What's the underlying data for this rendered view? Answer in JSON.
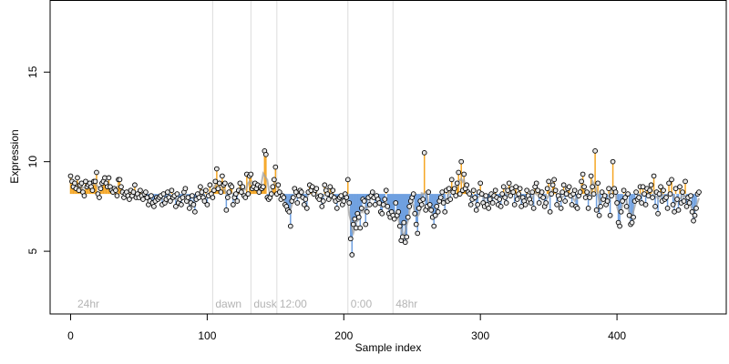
{
  "chart_data": {
    "type": "scatter",
    "xlabel": "Sample index",
    "ylabel": "Expression",
    "xlim": [
      -15,
      480
    ],
    "ylim": [
      1.5,
      19
    ],
    "xticks": [
      0,
      100,
      200,
      300,
      400
    ],
    "yticks": [
      5,
      10,
      15
    ],
    "baseline": 8.2,
    "annotations": [
      {
        "x": 104,
        "label": "dawn"
      },
      {
        "x": 132,
        "label": "dusk"
      },
      {
        "x": 151,
        "label": "12:00"
      },
      {
        "x": 203,
        "label": "0:00"
      },
      {
        "x": 236,
        "label": "48hr"
      }
    ],
    "corner_label": "24hr",
    "colors": {
      "above": "#f5a623",
      "below": "#6fa0e0",
      "trend": "#a0a0a0",
      "guide": "#dcdcdc",
      "point_fill": "#e8e8e8"
    },
    "series": [
      {
        "y": [
          9.2,
          8.9,
          8.6,
          8.8,
          8.5,
          9.1,
          8.4,
          8.7,
          8.8,
          8.3,
          8.1,
          8.9,
          8.6,
          8.7,
          8.8,
          8.6,
          8.4,
          8.9,
          8.9,
          9.4,
          8.2,
          8.0,
          8.5,
          8.8,
          8.9,
          9.1,
          8.8,
          8.6,
          9.1,
          8.6,
          8.4,
          8.3,
          8.5,
          8.4,
          8.1,
          9.0,
          9.0,
          8.6,
          8.3,
          8.0,
          8.2,
          8.3,
          8.1,
          7.9,
          8.4,
          8.1,
          8.3,
          8.7,
          8.0,
          8.2,
          8.0,
          8.4,
          8.1,
          7.9,
          8.2,
          8.3,
          8.0,
          7.6,
          7.8,
          8.1,
          7.7,
          7.5,
          7.8,
          8.0,
          7.9,
          8.0,
          8.1,
          7.6,
          8.2,
          7.7,
          7.9,
          8.3,
          8.0,
          7.8,
          8.4,
          8.0,
          8.1,
          7.5,
          8.2,
          7.7,
          7.9,
          7.6,
          8.0,
          8.3,
          8.5,
          7.8,
          8.0,
          7.4,
          7.7,
          8.1,
          7.6,
          7.2,
          7.9,
          8.2,
          8.0,
          8.6,
          8.3,
          8.0,
          7.8,
          8.4,
          7.6,
          8.1,
          8.7,
          8.2,
          8.0,
          8.4,
          8.9,
          9.6,
          8.5,
          8.8,
          8.3,
          9.2,
          8.7,
          8.8,
          7.3,
          8.0,
          8.3,
          8.7,
          8.6,
          7.6,
          8.0,
          8.2,
          7.8,
          8.4,
          8.8,
          8.3,
          8.6,
          8.1,
          8.0,
          9.3,
          8.2,
          9.2,
          9.3,
          8.5,
          8.6,
          8.8,
          8.5,
          8.7,
          8.3,
          8.6,
          8.5,
          8.6,
          10.6,
          10.4,
          8.0,
          7.9,
          8.0,
          8.2,
          8.6,
          9.0,
          9.7,
          8.2,
          8.7,
          8.3,
          7.9,
          8.1,
          8.0,
          7.6,
          7.5,
          7.3,
          7.2,
          6.4,
          7.8,
          8.0,
          8.5,
          8.3,
          7.7,
          8.1,
          8.4,
          8.3,
          8.0,
          7.6,
          7.9,
          7.4,
          8.3,
          8.7,
          8.4,
          8.6,
          8.2,
          8.4,
          8.5,
          8.0,
          7.9,
          8.1,
          7.5,
          7.8,
          8.7,
          8.4,
          8.2,
          7.9,
          8.6,
          8.1,
          8.4,
          8.0,
          7.8,
          7.4,
          7.9,
          8.0,
          8.1,
          7.6,
          7.8,
          8.2,
          8.0,
          9.0,
          7.7,
          5.7,
          4.8,
          6.5,
          6.8,
          6.3,
          7.1,
          6.9,
          6.3,
          7.4,
          7.9,
          7.8,
          6.5,
          7.2,
          8.0,
          7.6,
          8.1,
          8.3,
          8.0,
          7.6,
          8.1,
          7.9,
          7.7,
          7.2,
          7.1,
          7.6,
          7.9,
          8.4,
          7.5,
          7.1,
          6.9,
          7.2,
          7.0,
          6.8,
          7.7,
          7.0,
          7.2,
          6.4,
          5.6,
          5.8,
          6.6,
          5.5,
          5.8,
          6.9,
          7.5,
          7.8,
          8.0,
          8.2,
          7.1,
          6.5,
          6.0,
          7.4,
          7.8,
          7.6,
          7.9,
          10.5,
          7.3,
          7.5,
          8.3,
          7.6,
          7.3,
          6.9,
          6.4,
          7.0,
          7.5,
          7.2,
          7.8,
          8.0,
          8.3,
          7.7,
          7.2,
          8.4,
          7.8,
          8.5,
          7.9,
          9.0,
          8.3,
          8.5,
          8.1,
          8.8,
          9.4,
          8.2,
          10.0,
          8.4,
          9.3,
          8.5,
          8.7,
          8.3,
          8.2,
          7.6,
          7.9,
          8.4,
          8.0,
          7.3,
          7.6,
          8.3,
          8.8,
          8.2,
          7.7,
          7.5,
          8.1,
          7.6,
          7.4,
          7.9,
          8.2,
          7.7,
          8.1,
          8.4,
          8.0,
          7.6,
          7.9,
          7.5,
          8.2,
          8.6,
          8.0,
          7.7,
          8.4,
          8.8,
          8.1,
          8.5,
          8.3,
          7.6,
          8.6,
          7.9,
          8.2,
          8.5,
          7.5,
          8.0,
          7.8,
          7.6,
          8.4,
          8.1,
          7.9,
          7.7,
          8.3,
          7.4,
          8.6,
          8.8,
          8.4,
          7.7,
          8.1,
          8.3,
          8.0,
          7.5,
          7.7,
          8.5,
          8.9,
          7.2,
          8.2,
          8.7,
          9.0,
          8.4,
          7.6,
          8.1,
          7.9,
          7.4,
          8.3,
          8.7,
          7.8,
          8.2,
          8.5,
          8.6,
          8.1,
          7.6,
          8.2,
          8.4,
          7.5,
          7.4,
          8.1,
          8.3,
          8.9,
          9.3,
          8.6,
          8.0,
          8.3,
          7.4,
          8.0,
          9.2,
          8.6,
          8.2,
          10.6,
          7.3,
          8.8,
          7.0,
          7.5,
          8.3,
          7.9,
          8.1,
          7.6,
          7.8,
          8.5,
          7.0,
          8.1,
          10.0,
          8.5,
          8.3,
          7.7,
          6.6,
          6.4,
          7.2,
          7.8,
          8.4,
          8.0,
          7.5,
          8.2,
          7.0,
          6.5,
          6.6,
          6.9,
          7.8,
          8.3,
          7.9,
          8.0,
          8.6,
          7.7,
          8.6,
          8.2,
          7.6,
          8.5,
          8.1,
          8.4,
          8.7,
          8.0,
          9.2,
          7.5,
          8.3,
          7.1,
          8.2,
          8.6,
          7.8,
          8.4,
          7.9,
          8.0,
          7.4,
          8.8,
          8.2,
          9.0,
          7.6,
          7.2,
          8.5,
          7.9,
          7.3,
          8.6,
          7.7,
          8.3,
          7.8,
          8.9,
          7.5,
          8.0,
          7.7,
          8.1,
          7.2,
          6.7,
          7.0,
          7.4,
          8.2,
          8.3
        ]
      }
    ]
  }
}
